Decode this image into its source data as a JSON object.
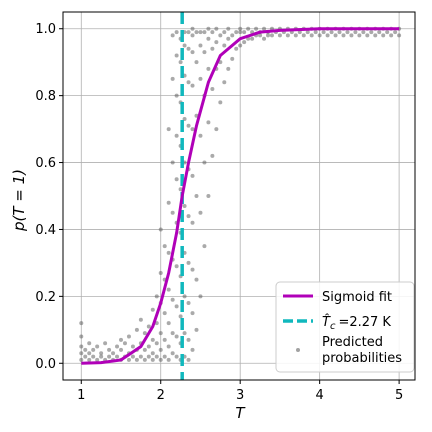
{
  "chart_data": {
    "type": "scatter",
    "xlabel": "T",
    "ylabel": "p(T = 1)",
    "xlim": [
      0.77,
      5.2
    ],
    "ylim": [
      -0.05,
      1.05
    ],
    "xticks": [
      1,
      2,
      3,
      4,
      5
    ],
    "yticks": [
      0.0,
      0.2,
      0.4,
      0.6,
      0.8,
      1.0
    ],
    "xtick_labels": [
      "1",
      "2",
      "3",
      "4",
      "5"
    ],
    "ytick_labels": [
      "0.0",
      "0.2",
      "0.4",
      "0.6",
      "0.8",
      "1.0"
    ],
    "grid": true,
    "legend_position": "lower-right",
    "colors": {
      "sigmoid": "#b000b8",
      "critical": "#10b8bd",
      "points": "#555555"
    },
    "sigmoid_fit": {
      "label": "Sigmoid fit",
      "x": [
        1.0,
        1.25,
        1.5,
        1.75,
        1.9,
        2.0,
        2.1,
        2.2,
        2.27,
        2.35,
        2.45,
        2.6,
        2.75,
        3.0,
        3.25,
        3.5,
        4.0,
        4.5,
        5.0
      ],
      "y": [
        0.0,
        0.002,
        0.01,
        0.05,
        0.11,
        0.18,
        0.27,
        0.39,
        0.5,
        0.6,
        0.71,
        0.84,
        0.92,
        0.97,
        0.99,
        0.995,
        1.0,
        1.0,
        1.0
      ]
    },
    "critical_temperature": {
      "label": "T̂c =2.27 K",
      "label_main": "T̂",
      "label_sub": "c",
      "label_value": "=2.27 K",
      "value": 2.27
    },
    "predicted_probabilities": {
      "label_lines": [
        "Predicted",
        "probabilities"
      ],
      "points": [
        [
          1.0,
          0.01
        ],
        [
          1.0,
          0.03
        ],
        [
          1.0,
          0.05
        ],
        [
          1.0,
          0.08
        ],
        [
          1.0,
          0.12
        ],
        [
          1.05,
          0.02
        ],
        [
          1.05,
          0.04
        ],
        [
          1.1,
          0.01
        ],
        [
          1.1,
          0.03
        ],
        [
          1.1,
          0.06
        ],
        [
          1.15,
          0.02
        ],
        [
          1.15,
          0.04
        ],
        [
          1.2,
          0.01
        ],
        [
          1.2,
          0.05
        ],
        [
          1.25,
          0.02
        ],
        [
          1.25,
          0.03
        ],
        [
          1.3,
          0.01
        ],
        [
          1.3,
          0.06
        ],
        [
          1.35,
          0.02
        ],
        [
          1.35,
          0.04
        ],
        [
          1.4,
          0.01
        ],
        [
          1.4,
          0.03
        ],
        [
          1.45,
          0.02
        ],
        [
          1.45,
          0.05
        ],
        [
          1.5,
          0.01
        ],
        [
          1.5,
          0.04
        ],
        [
          1.5,
          0.07
        ],
        [
          1.55,
          0.02
        ],
        [
          1.55,
          0.06
        ],
        [
          1.6,
          0.01
        ],
        [
          1.6,
          0.03
        ],
        [
          1.6,
          0.08
        ],
        [
          1.65,
          0.02
        ],
        [
          1.65,
          0.05
        ],
        [
          1.7,
          0.01
        ],
        [
          1.7,
          0.04
        ],
        [
          1.7,
          0.1
        ],
        [
          1.75,
          0.02
        ],
        [
          1.75,
          0.06
        ],
        [
          1.75,
          0.13
        ],
        [
          1.8,
          0.01
        ],
        [
          1.8,
          0.04
        ],
        [
          1.8,
          0.09
        ],
        [
          1.85,
          0.02
        ],
        [
          1.85,
          0.05
        ],
        [
          1.85,
          0.11
        ],
        [
          1.9,
          0.01
        ],
        [
          1.9,
          0.03
        ],
        [
          1.9,
          0.07
        ],
        [
          1.9,
          0.16
        ],
        [
          1.95,
          0.02
        ],
        [
          1.95,
          0.06
        ],
        [
          1.95,
          0.12
        ],
        [
          1.95,
          0.2
        ],
        [
          2.0,
          0.01
        ],
        [
          2.0,
          0.04
        ],
        [
          2.0,
          0.09
        ],
        [
          2.0,
          0.18
        ],
        [
          2.0,
          0.27
        ],
        [
          2.0,
          0.4
        ],
        [
          2.05,
          0.02
        ],
        [
          2.05,
          0.07
        ],
        [
          2.05,
          0.15
        ],
        [
          2.05,
          0.25
        ],
        [
          2.05,
          0.35
        ],
        [
          2.1,
          0.01
        ],
        [
          2.1,
          0.05
        ],
        [
          2.1,
          0.12
        ],
        [
          2.1,
          0.22
        ],
        [
          2.1,
          0.33
        ],
        [
          2.1,
          0.48
        ],
        [
          2.1,
          0.7
        ],
        [
          2.15,
          0.03
        ],
        [
          2.15,
          0.09
        ],
        [
          2.15,
          0.19
        ],
        [
          2.15,
          0.31
        ],
        [
          2.15,
          0.45
        ],
        [
          2.15,
          0.6
        ],
        [
          2.15,
          0.85
        ],
        [
          2.15,
          0.98
        ],
        [
          2.2,
          0.02
        ],
        [
          2.2,
          0.08
        ],
        [
          2.2,
          0.17
        ],
        [
          2.2,
          0.29
        ],
        [
          2.2,
          0.42
        ],
        [
          2.2,
          0.55
        ],
        [
          2.2,
          0.68
        ],
        [
          2.2,
          0.8
        ],
        [
          2.2,
          0.92
        ],
        [
          2.2,
          0.99
        ],
        [
          2.25,
          0.01
        ],
        [
          2.25,
          0.06
        ],
        [
          2.25,
          0.14
        ],
        [
          2.25,
          0.26
        ],
        [
          2.25,
          0.39
        ],
        [
          2.25,
          0.52
        ],
        [
          2.25,
          0.65
        ],
        [
          2.25,
          0.78
        ],
        [
          2.25,
          0.9
        ],
        [
          2.25,
          0.97
        ],
        [
          2.3,
          0.02
        ],
        [
          2.3,
          0.09
        ],
        [
          2.3,
          0.2
        ],
        [
          2.3,
          0.33
        ],
        [
          2.3,
          0.47
        ],
        [
          2.3,
          0.6
        ],
        [
          2.3,
          0.73
        ],
        [
          2.3,
          0.86
        ],
        [
          2.3,
          0.95
        ],
        [
          2.3,
          0.99
        ],
        [
          2.35,
          0.01
        ],
        [
          2.35,
          0.07
        ],
        [
          2.35,
          0.18
        ],
        [
          2.35,
          0.3
        ],
        [
          2.35,
          0.44
        ],
        [
          2.35,
          0.58
        ],
        [
          2.35,
          0.71
        ],
        [
          2.35,
          0.84
        ],
        [
          2.35,
          0.94
        ],
        [
          2.35,
          0.99
        ],
        [
          2.4,
          0.04
        ],
        [
          2.4,
          0.15
        ],
        [
          2.4,
          0.28
        ],
        [
          2.4,
          0.42
        ],
        [
          2.4,
          0.56
        ],
        [
          2.4,
          0.7
        ],
        [
          2.4,
          0.83
        ],
        [
          2.4,
          0.93
        ],
        [
          2.4,
          0.98
        ],
        [
          2.4,
          1.0
        ],
        [
          2.45,
          0.1
        ],
        [
          2.45,
          0.25
        ],
        [
          2.45,
          0.5
        ],
        [
          2.45,
          0.74
        ],
        [
          2.45,
          0.9
        ],
        [
          2.45,
          0.99
        ],
        [
          2.5,
          0.2
        ],
        [
          2.5,
          0.45
        ],
        [
          2.5,
          0.68
        ],
        [
          2.5,
          0.85
        ],
        [
          2.5,
          0.95
        ],
        [
          2.5,
          0.99
        ],
        [
          2.55,
          0.35
        ],
        [
          2.55,
          0.6
        ],
        [
          2.55,
          0.8
        ],
        [
          2.55,
          0.93
        ],
        [
          2.55,
          0.99
        ],
        [
          2.6,
          0.5
        ],
        [
          2.6,
          0.72
        ],
        [
          2.6,
          0.88
        ],
        [
          2.6,
          0.97
        ],
        [
          2.6,
          1.0
        ],
        [
          2.65,
          0.62
        ],
        [
          2.65,
          0.82
        ],
        [
          2.65,
          0.94
        ],
        [
          2.65,
          0.99
        ],
        [
          2.7,
          0.7
        ],
        [
          2.7,
          0.88
        ],
        [
          2.7,
          0.96
        ],
        [
          2.7,
          1.0
        ],
        [
          2.75,
          0.78
        ],
        [
          2.75,
          0.9
        ],
        [
          2.75,
          0.98
        ],
        [
          2.8,
          0.84
        ],
        [
          2.8,
          0.95
        ],
        [
          2.8,
          0.99
        ],
        [
          2.85,
          0.88
        ],
        [
          2.85,
          0.97
        ],
        [
          2.85,
          1.0
        ],
        [
          2.9,
          0.91
        ],
        [
          2.9,
          0.98
        ],
        [
          2.95,
          0.94
        ],
        [
          2.95,
          0.99
        ],
        [
          3.0,
          0.95
        ],
        [
          3.0,
          0.99
        ],
        [
          3.0,
          1.0
        ],
        [
          3.05,
          0.96
        ],
        [
          3.05,
          0.99
        ],
        [
          3.1,
          0.97
        ],
        [
          3.1,
          1.0
        ],
        [
          3.15,
          0.97
        ],
        [
          3.15,
          0.99
        ],
        [
          3.2,
          0.98
        ],
        [
          3.2,
          1.0
        ],
        [
          3.25,
          0.98
        ],
        [
          3.25,
          0.99
        ],
        [
          3.3,
          0.97
        ],
        [
          3.3,
          1.0
        ],
        [
          3.35,
          0.98
        ],
        [
          3.35,
          0.99
        ],
        [
          3.4,
          0.98
        ],
        [
          3.4,
          1.0
        ],
        [
          3.45,
          0.99
        ],
        [
          3.5,
          0.98
        ],
        [
          3.5,
          1.0
        ],
        [
          3.55,
          0.99
        ],
        [
          3.6,
          0.98
        ],
        [
          3.6,
          1.0
        ],
        [
          3.65,
          0.99
        ],
        [
          3.7,
          0.98
        ],
        [
          3.7,
          1.0
        ],
        [
          3.75,
          0.99
        ],
        [
          3.8,
          0.98
        ],
        [
          3.8,
          1.0
        ],
        [
          3.85,
          0.99
        ],
        [
          3.9,
          0.98
        ],
        [
          3.9,
          1.0
        ],
        [
          3.95,
          0.99
        ],
        [
          4.0,
          0.98
        ],
        [
          4.0,
          1.0
        ],
        [
          4.05,
          0.99
        ],
        [
          4.1,
          0.98
        ],
        [
          4.1,
          1.0
        ],
        [
          4.15,
          0.99
        ],
        [
          4.2,
          0.98
        ],
        [
          4.2,
          1.0
        ],
        [
          4.25,
          0.99
        ],
        [
          4.3,
          0.98
        ],
        [
          4.3,
          1.0
        ],
        [
          4.35,
          0.99
        ],
        [
          4.4,
          0.98
        ],
        [
          4.4,
          1.0
        ],
        [
          4.45,
          0.99
        ],
        [
          4.5,
          0.98
        ],
        [
          4.5,
          1.0
        ],
        [
          4.55,
          0.99
        ],
        [
          4.6,
          0.98
        ],
        [
          4.6,
          1.0
        ],
        [
          4.65,
          0.99
        ],
        [
          4.7,
          0.98
        ],
        [
          4.7,
          1.0
        ],
        [
          4.75,
          0.99
        ],
        [
          4.8,
          0.98
        ],
        [
          4.8,
          1.0
        ],
        [
          4.85,
          0.99
        ],
        [
          4.9,
          0.98
        ],
        [
          4.9,
          1.0
        ],
        [
          4.95,
          0.99
        ],
        [
          5.0,
          0.98
        ],
        [
          5.0,
          1.0
        ]
      ]
    }
  }
}
